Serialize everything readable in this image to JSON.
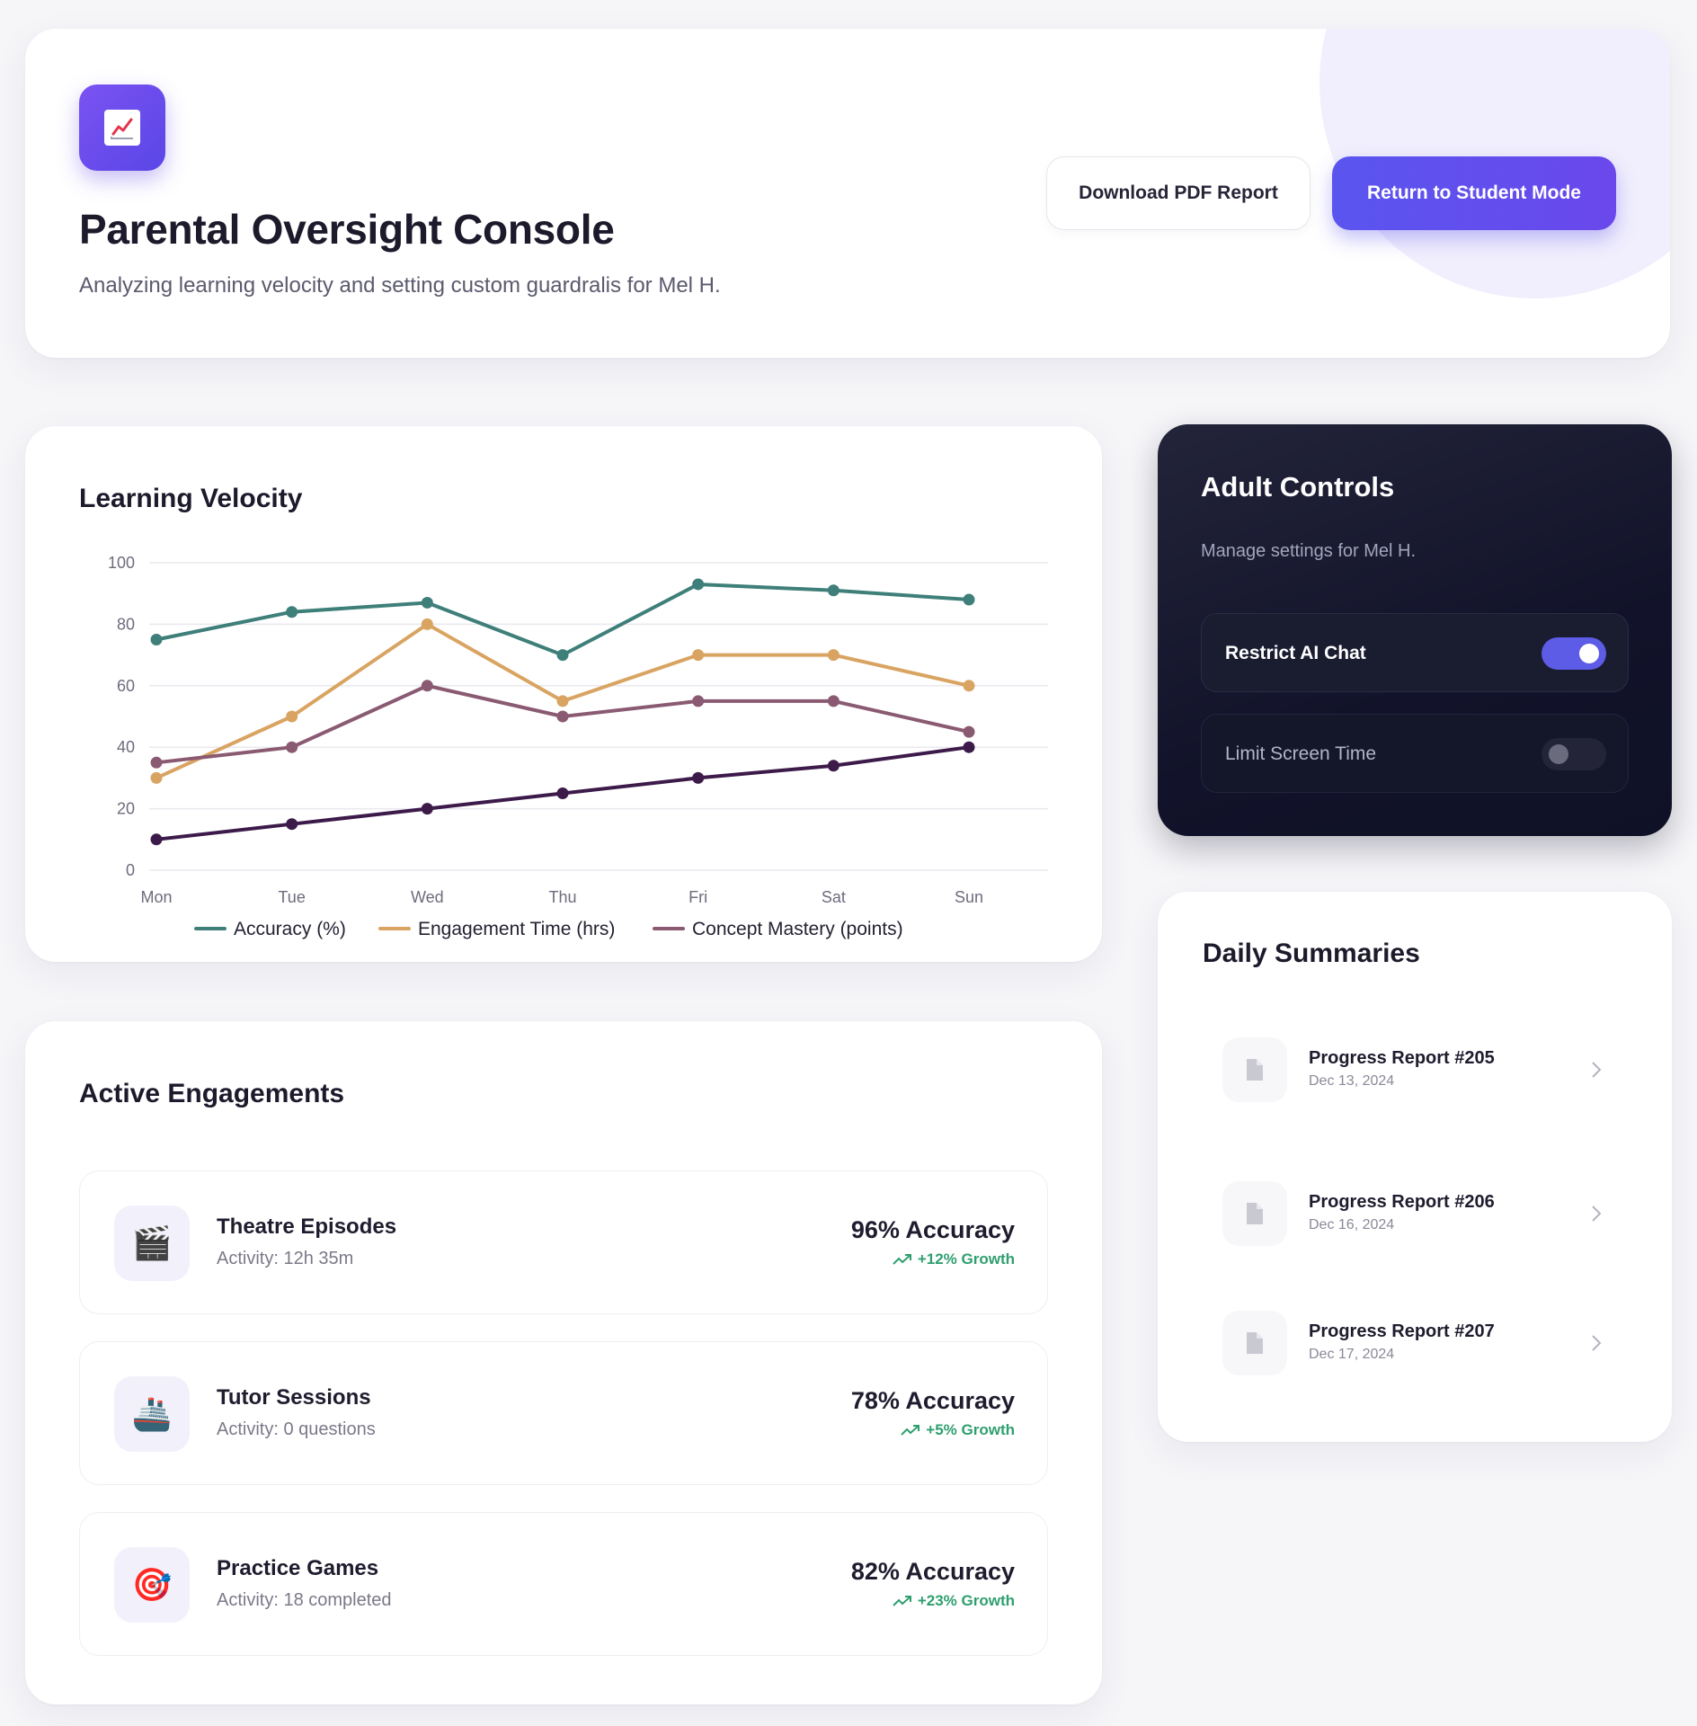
{
  "header": {
    "title": "Parental Oversight Console",
    "subtitle": "Analyzing learning velocity and setting custom guardralis for Mel H.",
    "logo_icon": "chart-line-icon",
    "download_label": "Download PDF Report",
    "return_label": "Return to Student Mode",
    "accent": "#5a55ee"
  },
  "velocity": {
    "title": "Learning Velocity"
  },
  "chart_data": {
    "type": "line",
    "title": "Learning Velocity",
    "categories": [
      "Mon",
      "Tue",
      "Wed",
      "Thu",
      "Fri",
      "Sat",
      "Sun"
    ],
    "y_ticks": [
      "0",
      "20",
      "40",
      "60",
      "80",
      "100"
    ],
    "ylim": [
      0,
      100
    ],
    "grid": true,
    "legend_position": "bottom",
    "series": [
      {
        "name": "Accuracy (%)",
        "color": "#3f7f7a",
        "values": [
          75,
          84,
          87,
          70,
          93,
          91,
          88
        ]
      },
      {
        "name": "Engagement Time (hrs)",
        "color": "#d9a462",
        "values": [
          30,
          50,
          80,
          55,
          70,
          70,
          60
        ]
      },
      {
        "name": "Concept Mastery (points)",
        "color": "#8a5a72",
        "values": [
          35,
          40,
          60,
          50,
          55,
          55,
          45
        ]
      },
      {
        "name": "",
        "color": "#3c1a4a",
        "values": [
          10,
          15,
          20,
          25,
          30,
          34,
          40
        ]
      }
    ]
  },
  "controls": {
    "title": "Adult Controls",
    "subtitle": "Manage settings for Mel H.",
    "items": [
      {
        "label": "Restrict AI Chat",
        "enabled": true
      },
      {
        "label": "Limit Screen Time",
        "enabled": false
      }
    ]
  },
  "engagements": {
    "title": "Active Engagements",
    "items": [
      {
        "icon": "🎬",
        "icon_name": "clapperboard-icon",
        "name": "Theatre Episodes",
        "activity": "Activity: 12h 35m",
        "accuracy": "96% Accuracy",
        "growth": "+12% Growth"
      },
      {
        "icon": "🚢",
        "icon_name": "ship-icon",
        "name": "Tutor Sessions",
        "activity": "Activity: 0 questions",
        "accuracy": "78% Accuracy",
        "growth": "+5% Growth"
      },
      {
        "icon": "🎯",
        "icon_name": "target-icon",
        "name": "Practice Games",
        "activity": "Activity: 18 completed",
        "accuracy": "82% Accuracy",
        "growth": "+23% Growth"
      }
    ]
  },
  "summaries": {
    "title": "Daily Summaries",
    "items": [
      {
        "name": "Progress Report #205",
        "date": "Dec 13, 2024"
      },
      {
        "name": "Progress Report #206",
        "date": "Dec 16, 2024"
      },
      {
        "name": "Progress Report #207",
        "date": "Dec 17, 2024"
      }
    ]
  }
}
